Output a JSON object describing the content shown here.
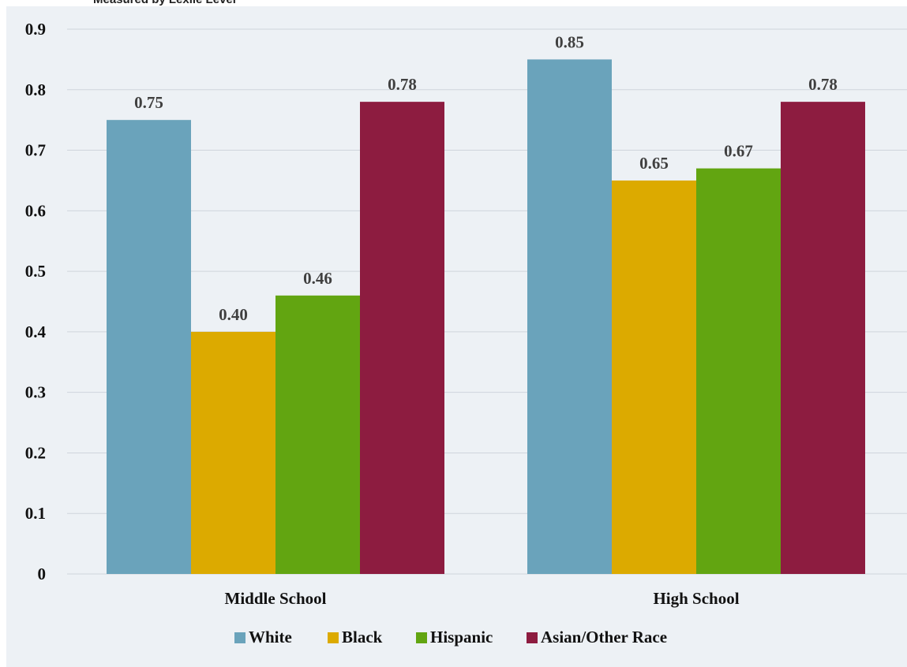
{
  "chart_data": {
    "type": "bar",
    "title": "Measured by Lexile Level",
    "categories": [
      "Middle School",
      "High School"
    ],
    "series": [
      {
        "name": "White",
        "values": [
          0.75,
          0.85
        ],
        "labels": [
          "0.75",
          "0.85"
        ],
        "color": "#6aa3bb"
      },
      {
        "name": "Black",
        "values": [
          0.4,
          0.65
        ],
        "labels": [
          "0.40",
          "0.65"
        ],
        "color": "#dcaa00"
      },
      {
        "name": "Hispanic",
        "values": [
          0.46,
          0.67
        ],
        "labels": [
          "0.46",
          "0.67"
        ],
        "color": "#62a511"
      },
      {
        "name": "Asian/Other Race",
        "values": [
          0.78,
          0.78
        ],
        "labels": [
          "0.78",
          "0.78"
        ],
        "color": "#8d1c40"
      }
    ],
    "yticks": [
      "0",
      "0.1",
      "0.2",
      "0.3",
      "0.4",
      "0.5",
      "0.6",
      "0.7",
      "0.8",
      "0.9"
    ],
    "ylim": [
      0,
      0.9
    ],
    "grid": true,
    "legend": "bottom",
    "background_color": "#edf1f5"
  }
}
